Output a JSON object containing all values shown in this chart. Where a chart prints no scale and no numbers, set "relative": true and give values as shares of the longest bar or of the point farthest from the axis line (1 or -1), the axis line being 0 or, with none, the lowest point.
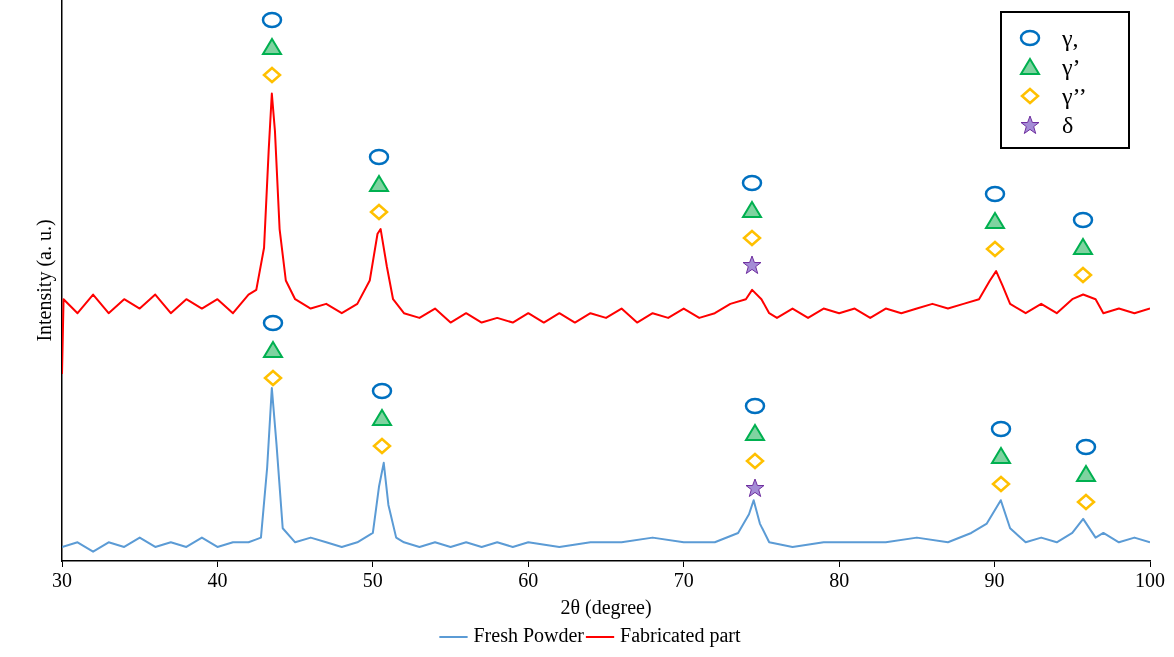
{
  "chart_data": {
    "type": "line",
    "relative": true,
    "xlabel": "2θ (degree)",
    "ylabel": "Intensity (a. u.)",
    "xlim": [
      30,
      100
    ],
    "xticks": [
      30,
      40,
      50,
      60,
      70,
      80,
      90,
      100
    ],
    "legend": "bottom",
    "grid": false,
    "marker": "none",
    "annotations": [
      "γ,",
      "γ’",
      "γ’’",
      "δ"
    ],
    "series": [
      {
        "name": "Fresh Powder",
        "color": "#5b9bd5",
        "x": [
          30,
          31,
          32,
          33,
          34,
          35,
          36,
          37,
          38,
          39,
          40,
          41,
          42,
          42.8,
          43.2,
          43.5,
          43.8,
          44.2,
          45,
          46,
          47,
          48,
          49,
          50,
          50.4,
          50.7,
          51,
          51.5,
          52,
          53,
          54,
          55,
          56,
          57,
          58,
          59,
          60,
          62,
          64,
          66,
          68,
          70,
          72,
          73.5,
          74.2,
          74.5,
          74.9,
          75.5,
          77,
          79,
          81,
          83,
          85,
          87,
          88.5,
          89.5,
          90.4,
          91,
          92,
          93,
          94,
          95,
          95.7,
          96.5,
          97,
          98,
          99,
          100
        ],
        "values": [
          0.03,
          0.04,
          0.02,
          0.04,
          0.03,
          0.05,
          0.03,
          0.04,
          0.03,
          0.05,
          0.03,
          0.04,
          0.04,
          0.05,
          0.2,
          0.37,
          0.25,
          0.07,
          0.04,
          0.05,
          0.04,
          0.03,
          0.04,
          0.06,
          0.16,
          0.21,
          0.12,
          0.05,
          0.04,
          0.03,
          0.04,
          0.03,
          0.04,
          0.03,
          0.04,
          0.03,
          0.04,
          0.03,
          0.04,
          0.04,
          0.05,
          0.04,
          0.04,
          0.06,
          0.1,
          0.13,
          0.08,
          0.04,
          0.03,
          0.04,
          0.04,
          0.04,
          0.05,
          0.04,
          0.06,
          0.08,
          0.13,
          0.07,
          0.04,
          0.05,
          0.04,
          0.06,
          0.09,
          0.05,
          0.06,
          0.04,
          0.05,
          0.04
        ]
      },
      {
        "name": "Fabricated part",
        "color": "#ff0000",
        "x": [
          30,
          30.1,
          31,
          32,
          33,
          34,
          35,
          36,
          37,
          38,
          39,
          40,
          41,
          42,
          42.5,
          43,
          43.3,
          43.5,
          43.7,
          44,
          44.4,
          45,
          46,
          47,
          48,
          49,
          49.8,
          50.3,
          50.5,
          50.9,
          51.3,
          52,
          53,
          54,
          55,
          56,
          57,
          58,
          59,
          60,
          61,
          62,
          63,
          64,
          65,
          66,
          67,
          68,
          69,
          70,
          71,
          72,
          73,
          74,
          74.4,
          75,
          75.5,
          76,
          77,
          78,
          79,
          80,
          81,
          82,
          83,
          84,
          85,
          86,
          87,
          88,
          89,
          89.7,
          90.1,
          90.5,
          91,
          92,
          93,
          94,
          95,
          95.7,
          96.5,
          97,
          98,
          99,
          100
        ],
        "values": [
          0.4,
          0.56,
          0.53,
          0.57,
          0.53,
          0.56,
          0.54,
          0.57,
          0.53,
          0.56,
          0.54,
          0.56,
          0.53,
          0.57,
          0.58,
          0.67,
          0.88,
          1,
          0.92,
          0.71,
          0.6,
          0.56,
          0.54,
          0.55,
          0.53,
          0.55,
          0.6,
          0.7,
          0.71,
          0.63,
          0.56,
          0.53,
          0.52,
          0.54,
          0.51,
          0.53,
          0.51,
          0.52,
          0.51,
          0.53,
          0.51,
          0.53,
          0.51,
          0.53,
          0.52,
          0.54,
          0.51,
          0.53,
          0.52,
          0.54,
          0.52,
          0.53,
          0.55,
          0.56,
          0.58,
          0.56,
          0.53,
          0.52,
          0.54,
          0.52,
          0.54,
          0.53,
          0.54,
          0.52,
          0.54,
          0.53,
          0.54,
          0.55,
          0.54,
          0.55,
          0.56,
          0.6,
          0.62,
          0.59,
          0.55,
          0.53,
          0.55,
          0.53,
          0.56,
          0.57,
          0.56,
          0.53,
          0.54,
          0.53,
          0.54
        ]
      }
    ]
  }
}
